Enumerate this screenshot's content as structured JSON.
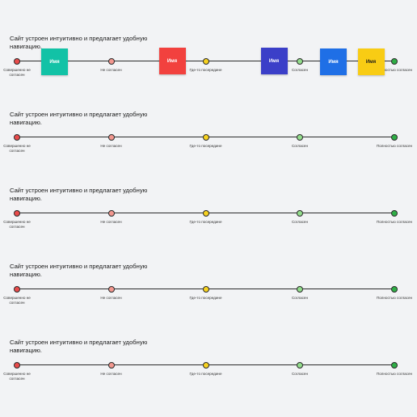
{
  "question_text": "Сайт устроен интуитивно и предлагает удобную навигацию.",
  "scale_points": [
    {
      "label": "Совершенно не согласен",
      "color": "#e94b4b"
    },
    {
      "label": "Не согласен",
      "color": "#f2978f"
    },
    {
      "label": "Где-то посередине",
      "color": "#f7d21f"
    },
    {
      "label": "Согласен",
      "color": "#93dd8c"
    },
    {
      "label": "Полностью согласен",
      "color": "#2fae46"
    }
  ],
  "name_notes": [
    {
      "label": "Имя",
      "color": "#12c2a6"
    },
    {
      "label": "Имя",
      "color": "#f2413e"
    },
    {
      "label": "Имя",
      "color": "#3b3fc8"
    },
    {
      "label": "Имя",
      "color": "#1f6fe6"
    },
    {
      "label": "Имя",
      "color": "#f8cc14"
    }
  ]
}
